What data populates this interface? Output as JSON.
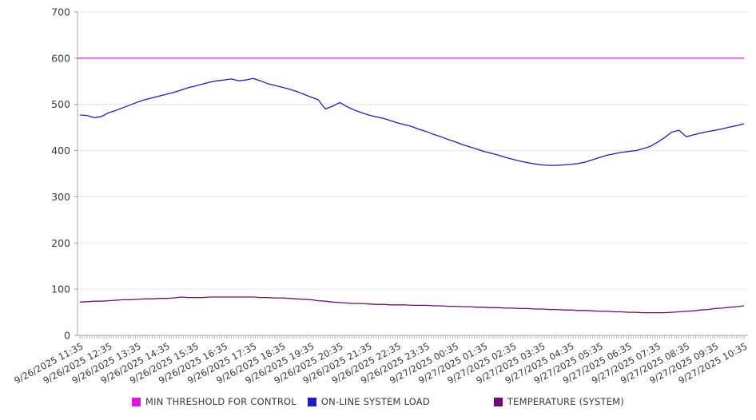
{
  "chart_data": {
    "type": "line",
    "title": "",
    "xlabel": "",
    "ylabel": "",
    "ylim": [
      0,
      700
    ],
    "y_ticks": [
      0,
      100,
      200,
      300,
      400,
      500,
      600,
      700
    ],
    "grid": true,
    "legend_position": "bottom",
    "x_type": "datetime",
    "x_tick_labels": [
      "9/26/2025 11:35",
      "9/26/2025 12:35",
      "9/26/2025 13:35",
      "9/26/2025 14:35",
      "9/26/2025 15:35",
      "9/26/2025 16:35",
      "9/26/2025 17:35",
      "9/26/2025 18:35",
      "9/26/2025 19:35",
      "9/26/2025 20:35",
      "9/26/2025 21:35",
      "9/26/2025 22:35",
      "9/26/2025 23:35",
      "9/27/2025 00:35",
      "9/27/2025 01:35",
      "9/27/2025 02:35",
      "9/27/2025 03:35",
      "9/27/2025 04:35",
      "9/27/2025 05:35",
      "9/27/2025 06:35",
      "9/27/2025 07:35",
      "9/27/2025 08:35",
      "9/27/2025 09:35",
      "9/27/2025 10:35"
    ],
    "minor_ticks_per_hour": 12,
    "sample_step_hours": 0.25,
    "series": [
      {
        "name": "MIN THRESHOLD FOR CONTROL",
        "color": "#e213e2",
        "constant": 600
      },
      {
        "name": "ON-LINE SYSTEM LOAD",
        "color": "#1c1cc8",
        "values": [
          477,
          476,
          471,
          474,
          482,
          487,
          493,
          499,
          505,
          510,
          514,
          518,
          522,
          526,
          531,
          536,
          540,
          544,
          548,
          551,
          553,
          555,
          551,
          553,
          556,
          551,
          545,
          541,
          537,
          533,
          528,
          522,
          516,
          510,
          490,
          496,
          504,
          495,
          488,
          482,
          477,
          473,
          470,
          465,
          460,
          456,
          452,
          446,
          441,
          435,
          430,
          424,
          419,
          413,
          408,
          403,
          398,
          394,
          390,
          385,
          381,
          377,
          374,
          371,
          369,
          368,
          368,
          369,
          370,
          372,
          375,
          380,
          385,
          390,
          393,
          396,
          398,
          400,
          404,
          409,
          418,
          428,
          440,
          444,
          430,
          434,
          438,
          441,
          444,
          447,
          451,
          454,
          458
        ]
      },
      {
        "name": "TEMPERATURE (SYSTEM)",
        "color": "#6e0c6e",
        "values": [
          72,
          73,
          74,
          74,
          75,
          76,
          77,
          77,
          78,
          79,
          79,
          80,
          80,
          81,
          83,
          82,
          82,
          82,
          83,
          83,
          83,
          83,
          83,
          83,
          83,
          82,
          82,
          81,
          81,
          80,
          79,
          78,
          77,
          75,
          74,
          72,
          71,
          70,
          69,
          69,
          68,
          67,
          67,
          66,
          66,
          66,
          65,
          65,
          65,
          64,
          64,
          63,
          63,
          62,
          62,
          61,
          61,
          60,
          60,
          59,
          59,
          58,
          58,
          57,
          57,
          56,
          56,
          55,
          55,
          54,
          54,
          53,
          52,
          52,
          51,
          51,
          50,
          50,
          49,
          49,
          49,
          49,
          50,
          51,
          52,
          53,
          55,
          56,
          58,
          59,
          61,
          62,
          64
        ]
      }
    ],
    "axis_colors": {
      "axis_line": "#aaaaaa",
      "gridline": "#e4e4e4",
      "tick": "#999999",
      "tick_label": "#3a3a3a"
    }
  }
}
